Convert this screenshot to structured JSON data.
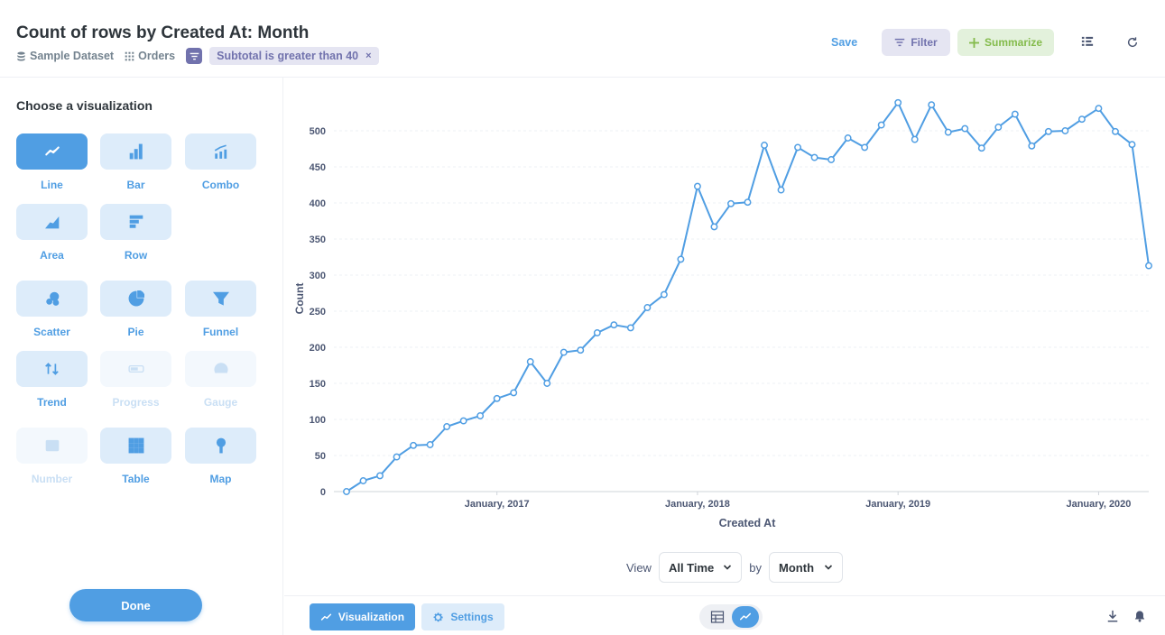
{
  "header": {
    "title": "Count of rows by Created At: Month",
    "breadcrumbs": {
      "database": "Sample Dataset",
      "table": "Orders"
    },
    "filter_pill": "Subtotal is greater than 40",
    "filter_remove": "×",
    "save_label": "Save",
    "filter_label": "Filter",
    "summarize_label": "Summarize"
  },
  "sidebar": {
    "title": "Choose a visualization",
    "options": [
      {
        "label": "Line",
        "icon": "line-icon",
        "state": "active"
      },
      {
        "label": "Bar",
        "icon": "bar-icon",
        "state": "normal"
      },
      {
        "label": "Combo",
        "icon": "combo-icon",
        "state": "normal"
      },
      {
        "label": "Area",
        "icon": "area-icon",
        "state": "normal"
      },
      {
        "label": "Row",
        "icon": "row-icon",
        "state": "normal"
      },
      {
        "label": "Scatter",
        "icon": "scatter-icon",
        "state": "normal"
      },
      {
        "label": "Pie",
        "icon": "pie-icon",
        "state": "normal"
      },
      {
        "label": "Funnel",
        "icon": "funnel-icon",
        "state": "normal"
      },
      {
        "label": "Trend",
        "icon": "trend-icon",
        "state": "normal"
      },
      {
        "label": "Progress",
        "icon": "progress-icon",
        "state": "disabled"
      },
      {
        "label": "Gauge",
        "icon": "gauge-icon",
        "state": "disabled"
      },
      {
        "label": "Number",
        "icon": "number-icon",
        "state": "disabled"
      },
      {
        "label": "Table",
        "icon": "table-icon",
        "state": "normal"
      },
      {
        "label": "Map",
        "icon": "map-icon",
        "state": "normal"
      }
    ],
    "done_label": "Done"
  },
  "controls": {
    "view_label": "View",
    "view_value": "All Time",
    "by_label": "by",
    "by_value": "Month"
  },
  "footer": {
    "visualization_label": "Visualization",
    "settings_label": "Settings"
  },
  "colors": {
    "accent": "#509ee3",
    "filter": "#7172ad",
    "summarize": "#84bb4c"
  },
  "chart_data": {
    "type": "line",
    "title": "",
    "xlabel": "Created At",
    "ylabel": "Count",
    "ylim": [
      0,
      550
    ],
    "yticks": [
      0,
      50,
      100,
      150,
      200,
      250,
      300,
      350,
      400,
      450,
      500
    ],
    "xtick_labels": [
      {
        "index": 9,
        "label": "January, 2017"
      },
      {
        "index": 21,
        "label": "January, 2018"
      },
      {
        "index": 33,
        "label": "January, 2019"
      },
      {
        "index": 45,
        "label": "January, 2020"
      }
    ],
    "x_start": "April, 2016",
    "series": [
      {
        "name": "Count",
        "values": [
          0,
          15,
          22,
          48,
          64,
          65,
          90,
          98,
          105,
          129,
          137,
          180,
          150,
          193,
          196,
          220,
          231,
          227,
          255,
          273,
          322,
          423,
          367,
          399,
          401,
          480,
          418,
          477,
          463,
          460,
          490,
          477,
          508,
          539,
          488,
          536,
          498,
          503,
          476,
          505,
          523,
          479,
          499,
          500,
          516,
          531,
          499,
          481,
          313
        ]
      }
    ]
  }
}
